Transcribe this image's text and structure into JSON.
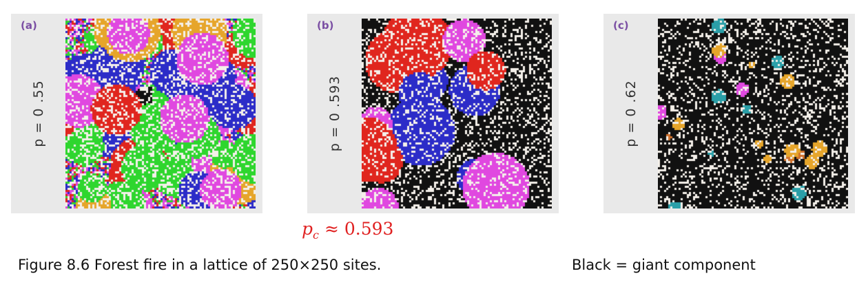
{
  "panels": [
    {
      "tag": "(a)",
      "label": "p = 0 .55",
      "p": 0.55
    },
    {
      "tag": "(b)",
      "label": "p = 0 .593",
      "p": 0.593
    },
    {
      "tag": "(c)",
      "label": "p = 0 .62",
      "p": 0.62
    }
  ],
  "critical": {
    "symbol": "p",
    "subscript": "c",
    "approx": "≈",
    "value": "0.593"
  },
  "caption": "Figure 8.6 Forest fire in a lattice of 250×250 sites.",
  "legend": "Black = giant component",
  "colors": {
    "giant": "#111111",
    "clusters": [
      "#e0261e",
      "#2c2cc8",
      "#2ed62e",
      "#e048e0",
      "#e6a52a",
      "#2a9fa8",
      "#d0702a"
    ],
    "empty": "#f4f0ea"
  }
}
